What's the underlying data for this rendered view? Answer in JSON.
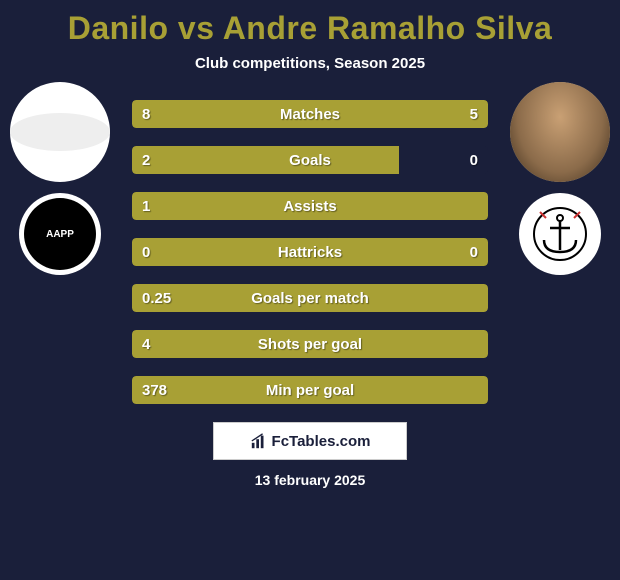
{
  "title": "Danilo vs Andre Ramalho Silva",
  "subtitle": "Club competitions, Season 2025",
  "colors": {
    "background": "#1a1f3a",
    "bar_fill": "#a8a035",
    "title_color": "#a8a035",
    "text_color": "#ffffff"
  },
  "player_left": {
    "name": "Danilo",
    "avatar_bg": "#ffffff"
  },
  "player_right": {
    "name": "Andre Ramalho Silva",
    "avatar_bg": "#d0c8b8"
  },
  "club_left": {
    "label": "AAPP"
  },
  "club_right": {
    "label": "Corinthians"
  },
  "bars": [
    {
      "label": "Matches",
      "left": "8",
      "right": "5",
      "left_pct": 62,
      "right_pct": 38,
      "mode": "split"
    },
    {
      "label": "Goals",
      "left": "2",
      "right": "0",
      "left_pct": 75,
      "right_pct": 0,
      "mode": "left-only"
    },
    {
      "label": "Assists",
      "left": "1",
      "right": "",
      "left_pct": 100,
      "right_pct": 0,
      "mode": "full"
    },
    {
      "label": "Hattricks",
      "left": "0",
      "right": "0",
      "left_pct": 100,
      "right_pct": 0,
      "mode": "full"
    },
    {
      "label": "Goals per match",
      "left": "0.25",
      "right": "",
      "left_pct": 100,
      "right_pct": 0,
      "mode": "full"
    },
    {
      "label": "Shots per goal",
      "left": "4",
      "right": "",
      "left_pct": 100,
      "right_pct": 0,
      "mode": "full"
    },
    {
      "label": "Min per goal",
      "left": "378",
      "right": "",
      "left_pct": 100,
      "right_pct": 0,
      "mode": "full"
    }
  ],
  "footer": {
    "brand": "FcTables.com",
    "date": "13 february 2025"
  }
}
